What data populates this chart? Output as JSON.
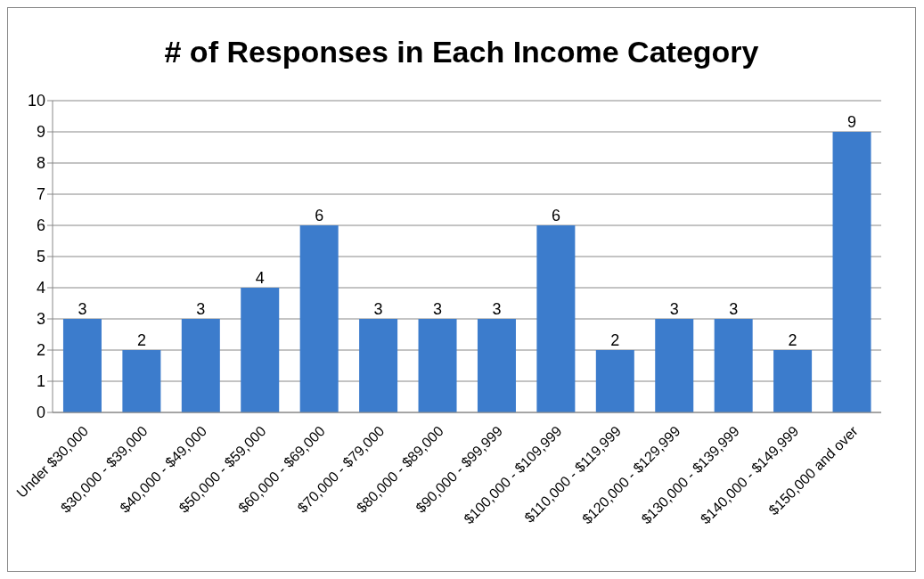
{
  "chart_data": {
    "type": "bar",
    "title": "# of Responses in Each Income Category",
    "categories": [
      "Under $30,000",
      "$30,000 - $39,000",
      "$40,000 - $49,000",
      "$50,000 - $59,000",
      "$60,000 - $69,000",
      "$70,000 - $79,000",
      "$80,000 - $89,000",
      "$90,000 - $99,999",
      "$100,000 - $109,999",
      "$110,000 - $119,999",
      "$120,000 - $129,999",
      "$130,000 - $139,999",
      "$140,000 - $149,999",
      "$150,000 and over"
    ],
    "values": [
      3,
      2,
      3,
      4,
      6,
      3,
      3,
      3,
      6,
      2,
      3,
      3,
      2,
      9
    ],
    "color": "#3c7ccc",
    "ylim": [
      0,
      10
    ],
    "yticks": [
      0,
      1,
      2,
      3,
      4,
      5,
      6,
      7,
      8,
      9,
      10
    ],
    "grid": "y",
    "data_labels": true,
    "legend": false
  }
}
